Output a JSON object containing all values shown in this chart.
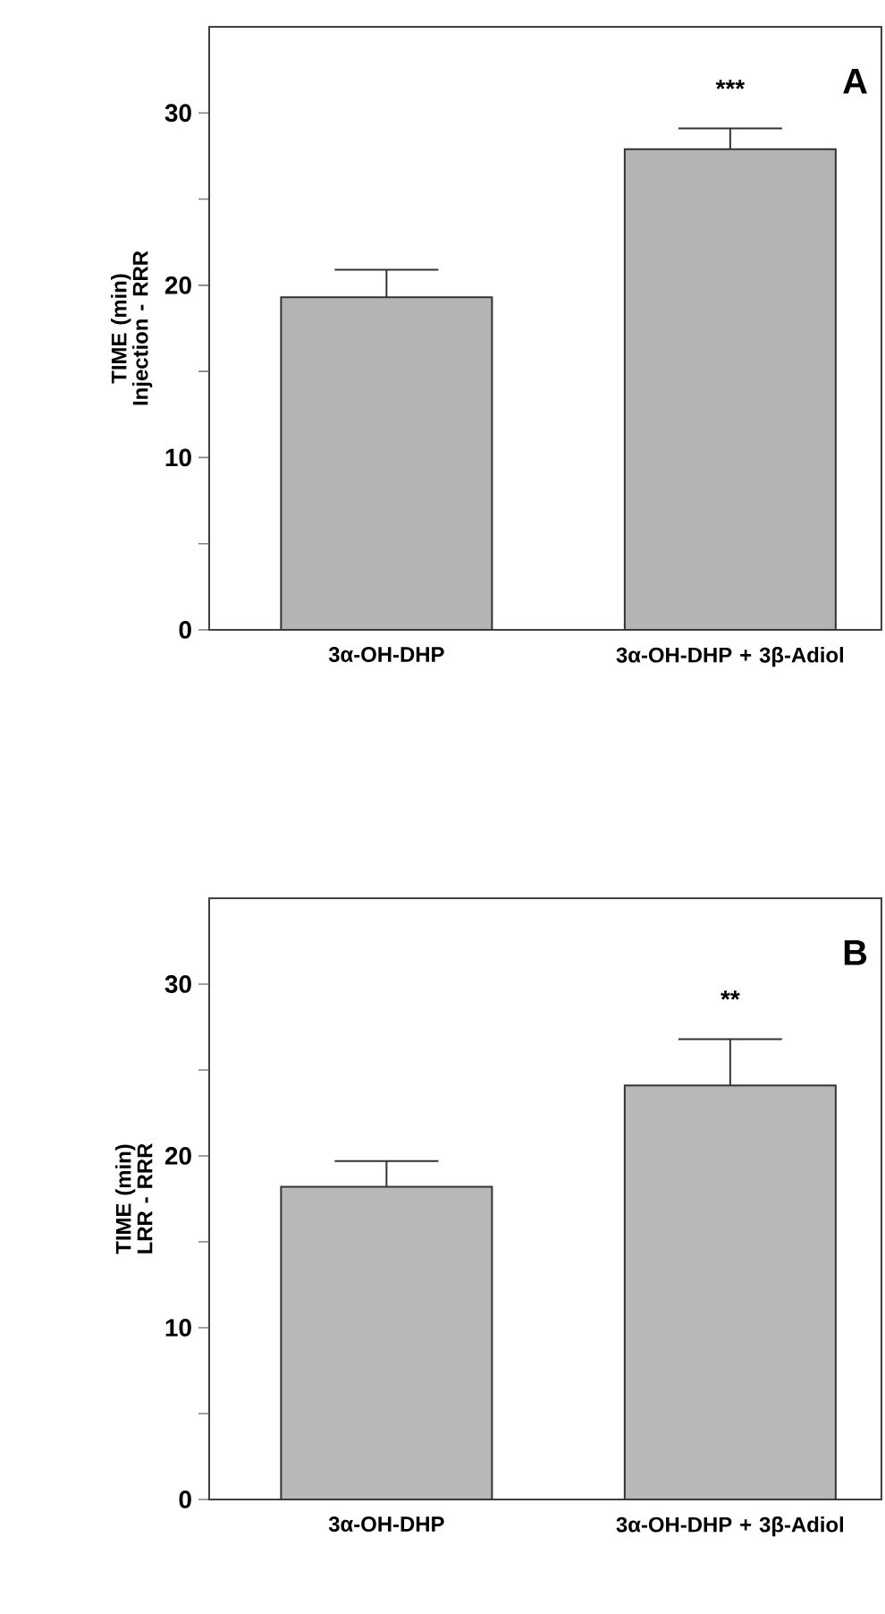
{
  "chart_data": [
    {
      "type": "bar",
      "ylabel": "TIME (min) Injection - RRR",
      "categories": [
        "3α-OH-DHP",
        "3α-OH-DHP + 3β-Adiol"
      ],
      "values": [
        19.3,
        27.9
      ],
      "errors": [
        1.6,
        1.2
      ],
      "color": "#b4b4b4",
      "ylim": [
        0,
        35
      ],
      "yticks": [
        0,
        {
          "value": 5,
          "label": null
        },
        10,
        {
          "value": 15,
          "label": null
        },
        20,
        {
          "value": 25,
          "label": null
        },
        30
      ],
      "annotations": [
        "***",
        "A"
      ]
    },
    {
      "type": "bar",
      "ylabel": "TIME (min) LRR - RRR",
      "categories": [
        "3α-OH-DHP",
        "3α-OH-DHP + 3β-Adiol"
      ],
      "values": [
        18.2,
        24.1
      ],
      "errors": [
        1.5,
        2.7
      ],
      "color": "#b8b8b8",
      "ylim": [
        0,
        35
      ],
      "yticks": [
        0,
        {
          "value": 5,
          "label": null
        },
        10,
        {
          "value": 15,
          "label": null
        },
        20,
        {
          "value": 25,
          "label": null
        },
        30
      ],
      "annotations": [
        "**",
        "B"
      ]
    }
  ]
}
